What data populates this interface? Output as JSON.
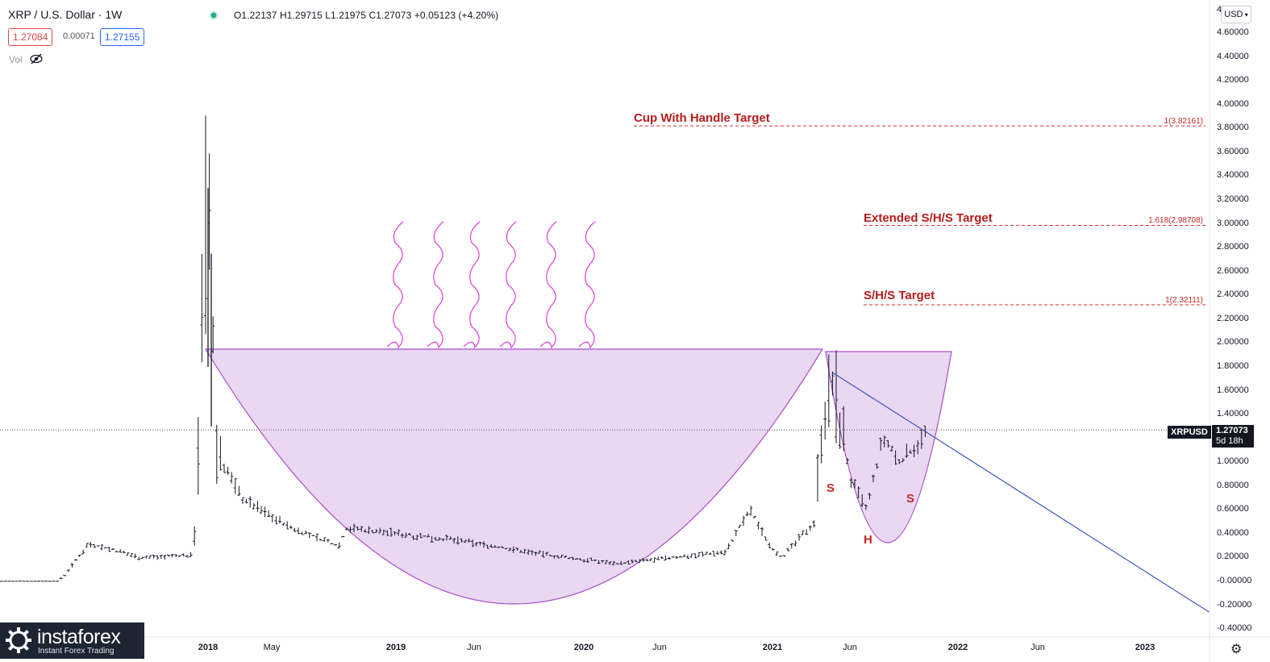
{
  "header": {
    "symbol_title": "XRP / U.S. Dollar · 1W",
    "ohlc": "O1.22137 H1.29715 L1.21975 C1.27073 +0.05123 (+4.20%)",
    "bid": "1.27084",
    "spread": "0.00071",
    "ask": "1.27155",
    "vol_label": "Vol"
  },
  "currency_selector": "USD",
  "price_axis": {
    "top_partial": "4",
    "ticks": [
      "4.60000",
      "4.40000",
      "4.20000",
      "4.00000",
      "3.80000",
      "3.60000",
      "3.40000",
      "3.20000",
      "3.00000",
      "2.80000",
      "2.60000",
      "2.40000",
      "2.20000",
      "2.00000",
      "1.80000",
      "1.60000",
      "1.40000",
      "1.20000",
      "1.00000",
      "0.80000",
      "0.60000",
      "0.40000",
      "0.20000",
      "-0.00000",
      "-0.20000",
      "-0.40000"
    ]
  },
  "time_axis": {
    "ticks": [
      {
        "label": "2018",
        "bold": true
      },
      {
        "label": "May",
        "bold": false
      },
      {
        "label": "2019",
        "bold": true
      },
      {
        "label": "Jun",
        "bold": false
      },
      {
        "label": "2020",
        "bold": true
      },
      {
        "label": "Jun",
        "bold": false
      },
      {
        "label": "2021",
        "bold": true
      },
      {
        "label": "Jun",
        "bold": false
      },
      {
        "label": "2022",
        "bold": true
      },
      {
        "label": "Jun",
        "bold": false
      },
      {
        "label": "2023",
        "bold": true
      }
    ]
  },
  "current_price": {
    "symbol": "XRPUSD",
    "value": "1.27073",
    "countdown": "5d 18h"
  },
  "targets": [
    {
      "title": "Cup With Handle Target",
      "level": "1(3.82161)",
      "price": 3.82161
    },
    {
      "title": "Extended S/H/S Target",
      "level": "1.618(2.98708)",
      "price": 2.98708
    },
    {
      "title": "S/H/S Target",
      "level": "1(2.32111)",
      "price": 2.32111
    }
  ],
  "pattern_labels": {
    "left_shoulder": "S",
    "head": "H",
    "right_shoulder": "S"
  },
  "colors": {
    "candle": "#131722",
    "cup_fill": "#ead7f2",
    "cup_stroke": "#a64fc9",
    "trendline": "#3f57b8",
    "target": "#d32f2f",
    "steam": "#e040d6",
    "bid": "#e0454a",
    "ask": "#2962ff"
  },
  "logo": {
    "name": "instaforex",
    "tagline": "Instant Forex Trading"
  },
  "chart_data": {
    "type": "line",
    "title": "XRP / U.S. Dollar · 1W",
    "xlabel": "",
    "ylabel": "",
    "ylim": [
      -0.4,
      4.7
    ],
    "x": [
      "2017-03",
      "2017-05",
      "2017-07",
      "2017-10",
      "2017-12",
      "2018-01",
      "2018-02",
      "2018-04",
      "2018-07",
      "2018-09",
      "2018-12",
      "2019-06",
      "2019-12",
      "2020-03",
      "2020-08",
      "2020-11",
      "2020-12",
      "2021-01",
      "2021-02",
      "2021-04",
      "2021-05",
      "2021-06",
      "2021-07",
      "2021-08",
      "2021-09",
      "2021-10",
      "2021-11"
    ],
    "series": [
      {
        "values": [
          0.0,
          0.03,
          0.32,
          0.2,
          0.22,
          3.3,
          1.1,
          0.7,
          0.45,
          0.3,
          0.45,
          0.35,
          0.2,
          0.15,
          0.25,
          0.6,
          0.3,
          0.2,
          0.5,
          1.4,
          1.6,
          0.85,
          0.6,
          1.2,
          1.0,
          1.1,
          1.27
        ]
      }
    ]
  }
}
